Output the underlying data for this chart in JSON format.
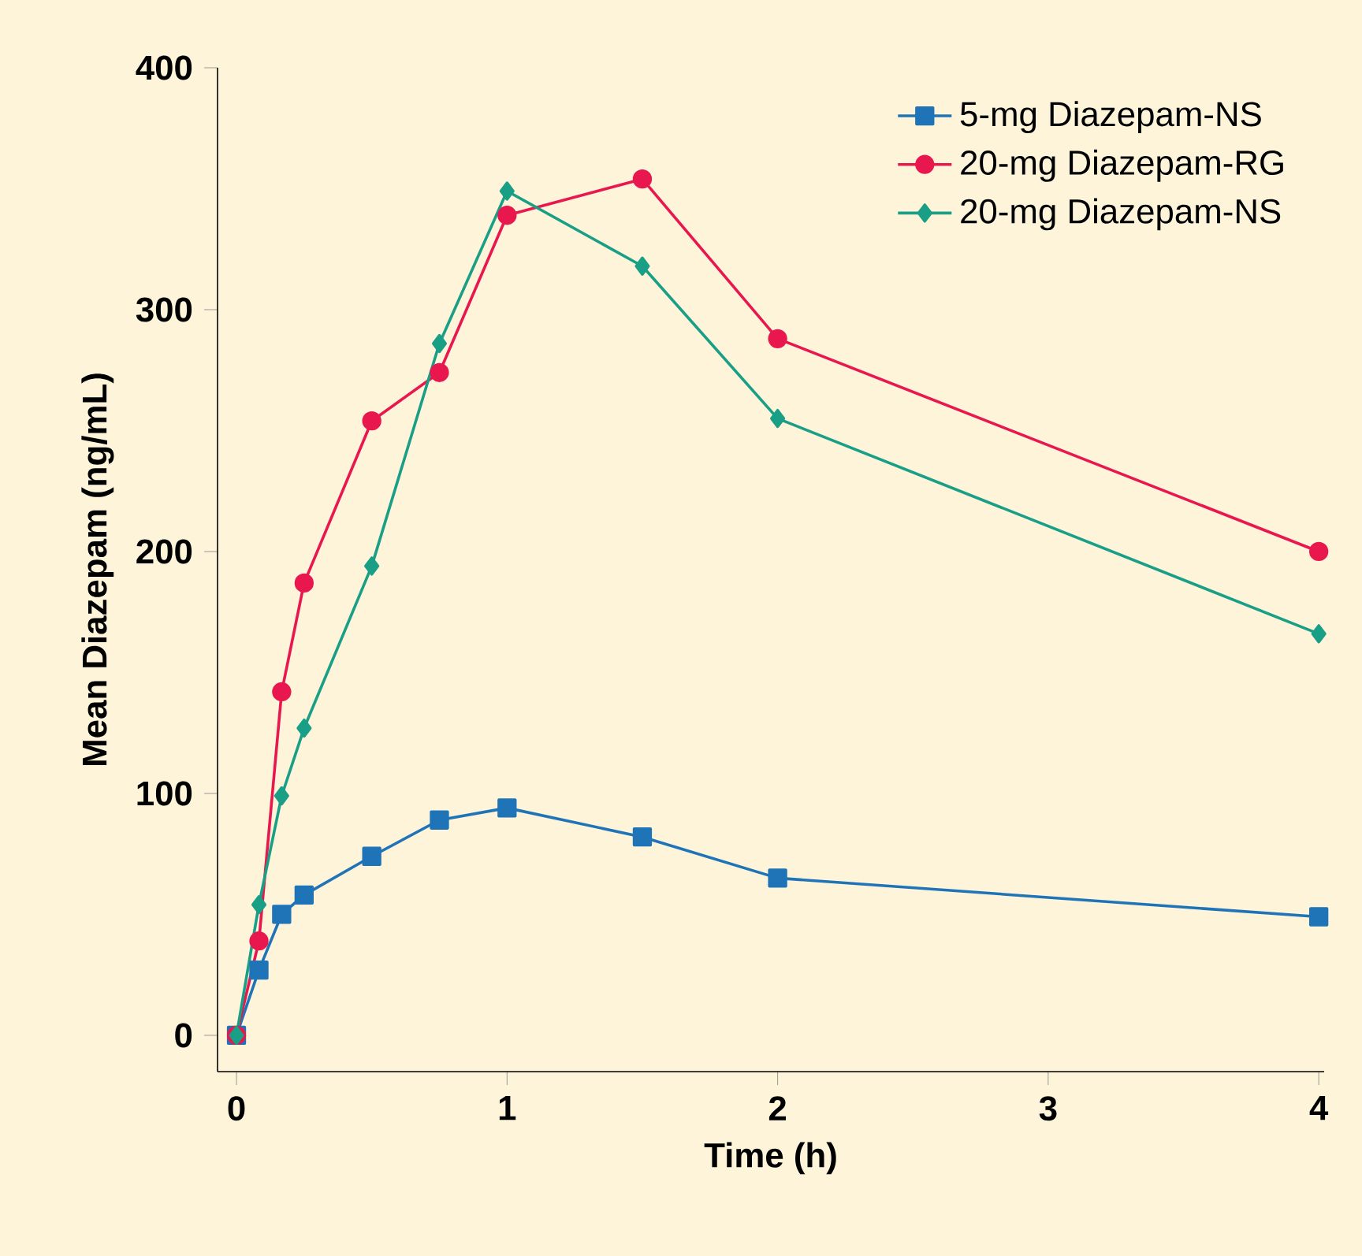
{
  "chart_data": {
    "type": "line",
    "xlabel": "Time (h)",
    "ylabel": "Mean Diazepam (ng/mL)",
    "x": [
      0,
      0.083,
      0.167,
      0.25,
      0.5,
      0.75,
      1,
      1.5,
      2,
      4
    ],
    "series": [
      {
        "name": "5-mg Diazepam-NS",
        "color": "#1f74b8",
        "marker": "square",
        "values": [
          0,
          27,
          50,
          58,
          74,
          89,
          94,
          82,
          65,
          49
        ]
      },
      {
        "name": "20-mg Diazepam-RG",
        "color": "#e8184f",
        "marker": "circle",
        "values": [
          0,
          39,
          142,
          187,
          254,
          274,
          339,
          354,
          288,
          200
        ]
      },
      {
        "name": "20-mg Diazepam-NS",
        "color": "#1a9f87",
        "marker": "diamond",
        "values": [
          0,
          54,
          99,
          127,
          194,
          286,
          349,
          318,
          255,
          166
        ]
      }
    ],
    "xlim": [
      -0.07,
      4.02
    ],
    "ylim": [
      -15,
      400
    ],
    "xticks": [
      0,
      1,
      2,
      3,
      4
    ],
    "yticks": [
      0,
      100,
      200,
      300,
      400
    ],
    "grid": false,
    "legend": "top right",
    "line_style": "solid"
  }
}
